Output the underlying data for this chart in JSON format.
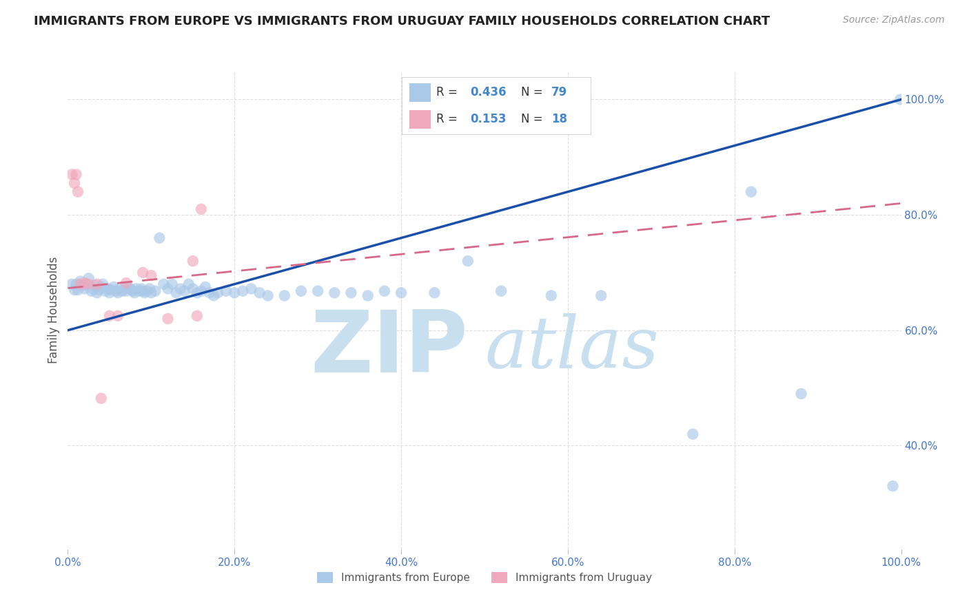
{
  "title": "IMMIGRANTS FROM EUROPE VS IMMIGRANTS FROM URUGUAY FAMILY HOUSEHOLDS CORRELATION CHART",
  "source": "Source: ZipAtlas.com",
  "xlabel": "",
  "ylabel": "Family Households",
  "xlim": [
    0,
    1.0
  ],
  "ylim": [
    0.22,
    1.05
  ],
  "xticks": [
    0.0,
    0.2,
    0.4,
    0.6,
    0.8,
    1.0
  ],
  "yticks": [
    0.4,
    0.6,
    0.8,
    1.0
  ],
  "xtick_labels": [
    "0.0%",
    "20.0%",
    "40.0%",
    "60.0%",
    "80.0%",
    "100.0%"
  ],
  "ytick_labels": [
    "40.0%",
    "60.0%",
    "80.0%",
    "100.0%"
  ],
  "blue_R": 0.436,
  "blue_N": 79,
  "pink_R": 0.153,
  "pink_N": 18,
  "blue_color": "#aac8e8",
  "pink_color": "#f0a8bc",
  "blue_line_color": "#1a4faa",
  "pink_line_color": "#d86888",
  "background_color": "#ffffff",
  "grid_color": "#dddddd",
  "title_color": "#222222",
  "axis_label_color": "#555555",
  "tick_color": "#4477cc",
  "legend_R_color": "#4488cc",
  "blue_scatter_x": [
    0.005,
    0.008,
    0.01,
    0.012,
    0.015,
    0.018,
    0.02,
    0.022,
    0.025,
    0.028,
    0.03,
    0.032,
    0.035,
    0.038,
    0.04,
    0.042,
    0.045,
    0.048,
    0.05,
    0.052,
    0.055,
    0.058,
    0.06,
    0.062,
    0.065,
    0.068,
    0.07,
    0.072,
    0.075,
    0.078,
    0.08,
    0.082,
    0.085,
    0.088,
    0.09,
    0.092,
    0.095,
    0.098,
    0.1,
    0.105,
    0.11,
    0.115,
    0.12,
    0.125,
    0.13,
    0.135,
    0.14,
    0.145,
    0.15,
    0.155,
    0.16,
    0.165,
    0.17,
    0.175,
    0.18,
    0.19,
    0.2,
    0.21,
    0.22,
    0.23,
    0.24,
    0.26,
    0.28,
    0.3,
    0.32,
    0.34,
    0.36,
    0.38,
    0.4,
    0.44,
    0.48,
    0.52,
    0.58,
    0.64,
    0.75,
    0.82,
    0.88,
    0.99,
    0.999
  ],
  "blue_scatter_y": [
    0.68,
    0.67,
    0.68,
    0.67,
    0.685,
    0.678,
    0.672,
    0.68,
    0.69,
    0.668,
    0.672,
    0.678,
    0.665,
    0.67,
    0.675,
    0.68,
    0.668,
    0.672,
    0.665,
    0.67,
    0.675,
    0.668,
    0.665,
    0.672,
    0.668,
    0.672,
    0.668,
    0.675,
    0.672,
    0.668,
    0.665,
    0.672,
    0.668,
    0.672,
    0.668,
    0.665,
    0.668,
    0.672,
    0.665,
    0.668,
    0.76,
    0.68,
    0.672,
    0.68,
    0.665,
    0.672,
    0.668,
    0.68,
    0.672,
    0.665,
    0.668,
    0.675,
    0.665,
    0.66,
    0.665,
    0.668,
    0.665,
    0.668,
    0.672,
    0.665,
    0.66,
    0.66,
    0.668,
    0.668,
    0.665,
    0.665,
    0.66,
    0.668,
    0.665,
    0.665,
    0.72,
    0.668,
    0.66,
    0.66,
    0.42,
    0.84,
    0.49,
    0.33,
    1.0
  ],
  "pink_scatter_x": [
    0.005,
    0.008,
    0.01,
    0.012,
    0.015,
    0.02,
    0.025,
    0.035,
    0.04,
    0.05,
    0.06,
    0.07,
    0.09,
    0.1,
    0.12,
    0.15,
    0.155,
    0.16
  ],
  "pink_scatter_y": [
    0.87,
    0.855,
    0.87,
    0.84,
    0.68,
    0.682,
    0.68,
    0.68,
    0.482,
    0.625,
    0.625,
    0.682,
    0.7,
    0.695,
    0.62,
    0.72,
    0.625,
    0.81
  ],
  "blue_line_x0": 0.0,
  "blue_line_x1": 1.0,
  "blue_line_y0": 0.6,
  "blue_line_y1": 1.0,
  "pink_line_x0": 0.0,
  "pink_line_x1": 1.0,
  "pink_line_y0": 0.673,
  "pink_line_y1": 0.82,
  "watermark": "ZIPatlas",
  "watermark_color": "#c8dff0"
}
